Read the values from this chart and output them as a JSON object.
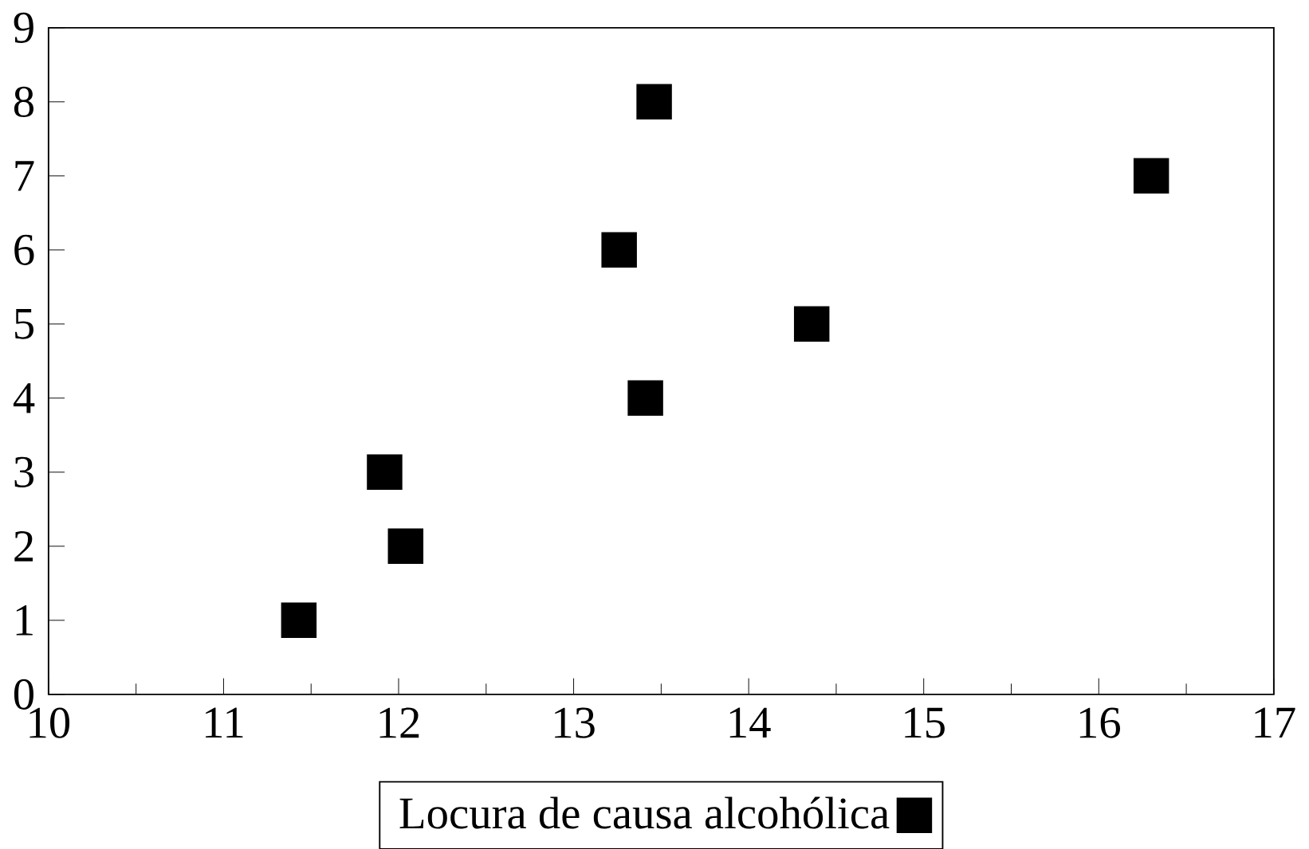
{
  "chart_data": {
    "type": "scatter",
    "xlim": [
      10,
      17
    ],
    "ylim": [
      0,
      9
    ],
    "xticks": [
      10,
      11,
      12,
      13,
      14,
      15,
      16,
      17
    ],
    "yticks": [
      0,
      1,
      2,
      3,
      4,
      5,
      6,
      7,
      8,
      9
    ],
    "marker": "square",
    "legend": "bottom",
    "grid": false,
    "series": [
      {
        "name": "Locura de causa alcohólica",
        "color": "#000000",
        "x": [
          11.43,
          11.92,
          12.04,
          13.26,
          13.46,
          13.41,
          14.36,
          16.3
        ],
        "values": [
          1,
          3,
          2,
          6,
          8,
          4,
          5,
          7
        ]
      }
    ]
  }
}
